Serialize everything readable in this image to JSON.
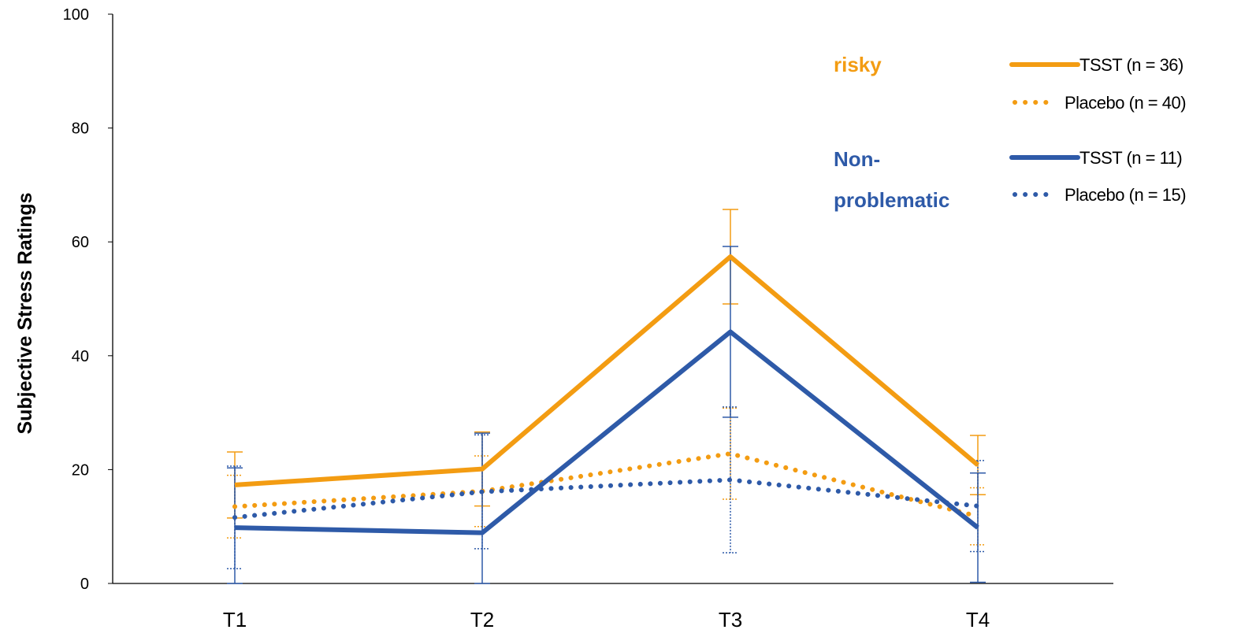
{
  "chart_data": {
    "type": "line",
    "title": "",
    "xlabel": "",
    "ylabel": "Subjective Stress Ratings",
    "categories": [
      "T1",
      "T2",
      "T3",
      "T4"
    ],
    "ylim": [
      0,
      100
    ],
    "yticks": [
      0,
      20,
      40,
      60,
      80,
      100
    ],
    "grid": false,
    "legend_position": "top-right",
    "groups": [
      {
        "label": "risky",
        "color": "#F39C12"
      },
      {
        "label": "Non-\nproblematic",
        "color": "#2E5AA8"
      }
    ],
    "series": [
      {
        "name": "TSST (n = 36)",
        "group": "risky",
        "color": "#F39C12",
        "style": "solid",
        "values": [
          17.3,
          20.1,
          57.4,
          20.8
        ],
        "error": [
          5.8,
          6.5,
          8.3,
          5.2
        ]
      },
      {
        "name": "Placebo (n = 40)",
        "group": "risky",
        "color": "#F39C12",
        "style": "dotted",
        "values": [
          13.5,
          16.2,
          22.8,
          11.8
        ],
        "error": [
          5.5,
          6.2,
          8.0,
          5.0
        ]
      },
      {
        "name": "TSST (n = 11)",
        "group": "Non-problematic",
        "color": "#2E5AA8",
        "style": "solid",
        "values": [
          9.8,
          8.9,
          44.2,
          9.8
        ],
        "error": [
          10.5,
          17.5,
          15.0,
          9.6
        ]
      },
      {
        "name": "Placebo (n = 15)",
        "group": "Non-problematic",
        "color": "#2E5AA8",
        "style": "dotted",
        "values": [
          11.6,
          16.1,
          18.2,
          13.6
        ],
        "error": [
          9.0,
          10.0,
          12.8,
          8.0
        ]
      }
    ]
  }
}
